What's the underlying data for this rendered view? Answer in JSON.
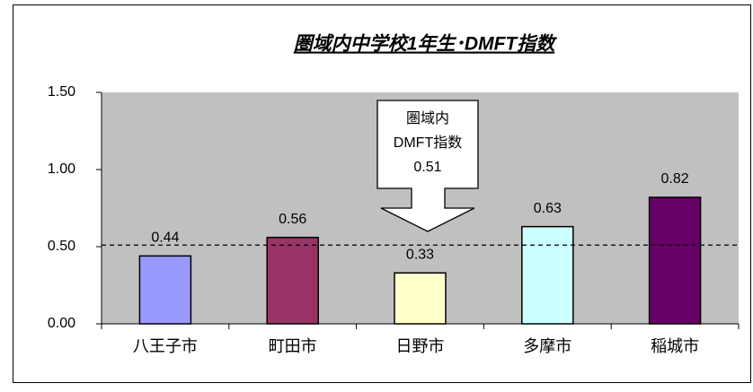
{
  "chart_data": {
    "type": "bar",
    "title": "圏域内中学校1年生･DMFT指数",
    "categories": [
      "八王子市",
      "町田市",
      "日野市",
      "多摩市",
      "稲城市"
    ],
    "values": [
      0.44,
      0.56,
      0.33,
      0.63,
      0.82
    ],
    "colors": [
      "#9999ff",
      "#993366",
      "#ffffcc",
      "#ccffff",
      "#660066"
    ],
    "ylim": [
      0,
      1.5
    ],
    "yticks": [
      {
        "value": 0,
        "label": "0.00"
      },
      {
        "value": 0.5,
        "label": "0.50"
      },
      {
        "value": 1,
        "label": "1.00"
      },
      {
        "value": 1.5,
        "label": "1.50"
      }
    ],
    "reference_line": {
      "value": 0.51,
      "label_lines": [
        "圏域内",
        "DMFT指数"
      ]
    }
  }
}
